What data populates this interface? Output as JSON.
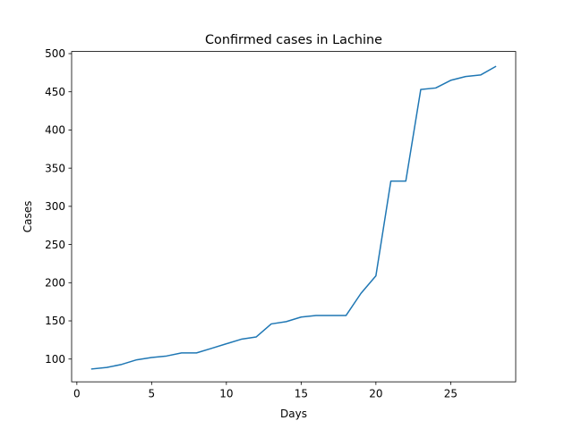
{
  "chart_data": {
    "type": "line",
    "title": "Confirmed cases in Lachine",
    "xlabel": "Days",
    "ylabel": "Cases",
    "xlim": [
      -0.35,
      29.35
    ],
    "ylim": [
      70.2,
      502.8
    ],
    "xticks": [
      0,
      5,
      10,
      15,
      20,
      25
    ],
    "yticks": [
      100,
      150,
      200,
      250,
      300,
      350,
      400,
      450,
      500
    ],
    "grid": false,
    "series": [
      {
        "color": "#1f77b4",
        "x": [
          1,
          2,
          3,
          4,
          5,
          6,
          7,
          8,
          9,
          10,
          11,
          12,
          13,
          14,
          15,
          16,
          17,
          18,
          19,
          20,
          21,
          22,
          23,
          24,
          25,
          26,
          27,
          28
        ],
        "y": [
          87,
          89,
          93,
          99,
          102,
          104,
          108,
          108,
          114,
          120,
          126,
          129,
          146,
          149,
          155,
          157,
          157,
          157,
          186,
          209,
          333,
          333,
          453,
          455,
          465,
          470,
          472,
          483
        ]
      }
    ]
  }
}
